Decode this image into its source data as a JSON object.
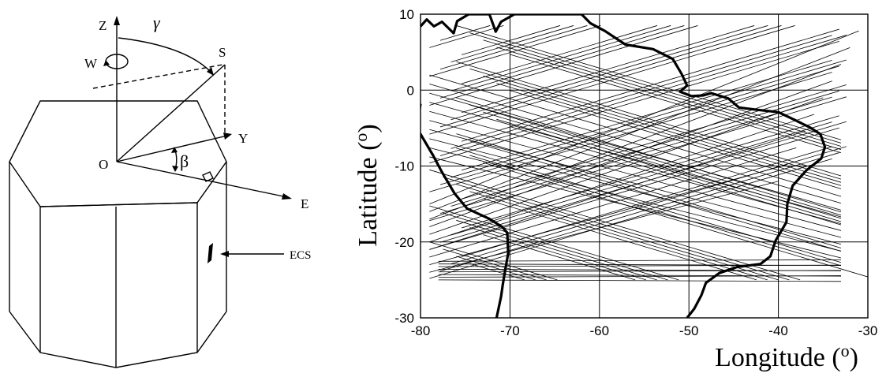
{
  "left_diagram": {
    "labels": {
      "z": "Z",
      "gamma": "γ",
      "s": "S",
      "w": "W",
      "o": "O",
      "y": "Y",
      "beta": "β",
      "e": "E",
      "ecs": "ECS"
    }
  },
  "chart_data": {
    "type": "line",
    "title": "",
    "xlabel": "Longitude (",
    "ylabel": "Latitude (",
    "unit_superscript": "o",
    "xlim": [
      -80,
      -30
    ],
    "ylim": [
      -30,
      10
    ],
    "xticks": [
      -80,
      -70,
      -60,
      -50,
      -40,
      -30
    ],
    "yticks": [
      -30,
      -20,
      -10,
      0,
      10
    ],
    "xtick_labels": [
      "-80",
      "-70",
      "-60",
      "-50",
      "-40",
      "-30"
    ],
    "ytick_labels": [
      "-30",
      "-20",
      "-10",
      "0",
      "10"
    ],
    "grid": true,
    "coastline": [
      [
        -80,
        8.4
      ],
      [
        -79.3,
        9.3
      ],
      [
        -78.5,
        8.4
      ],
      [
        -77.6,
        9.0
      ],
      [
        -76.3,
        7.5
      ],
      [
        -75.9,
        9.1
      ],
      [
        -74.6,
        10.0
      ],
      [
        -72.3,
        10.0
      ],
      [
        -71.6,
        7.7
      ],
      [
        -71.0,
        9.0
      ],
      [
        -69.5,
        10.0
      ],
      [
        -64.0,
        10.0
      ],
      [
        -62.0,
        10.0
      ],
      [
        -61.0,
        8.8
      ],
      [
        -59.4,
        7.8
      ],
      [
        -57.1,
        6.0
      ],
      [
        -54.0,
        5.4
      ],
      [
        -51.8,
        4.1
      ],
      [
        -50.8,
        2.1
      ],
      [
        -50.2,
        0.6
      ],
      [
        -51.0,
        -0.2
      ],
      [
        -49.7,
        -0.8
      ],
      [
        -48.4,
        -0.7
      ],
      [
        -47.5,
        -0.4
      ],
      [
        -45.6,
        -1.1
      ],
      [
        -44.4,
        -2.3
      ],
      [
        -42.3,
        -2.6
      ],
      [
        -40.0,
        -2.9
      ],
      [
        -38.4,
        -3.8
      ],
      [
        -36.5,
        -4.9
      ],
      [
        -35.3,
        -5.8
      ],
      [
        -34.8,
        -7.5
      ],
      [
        -35.2,
        -9.0
      ],
      [
        -36.9,
        -10.6
      ],
      [
        -38.4,
        -12.6
      ],
      [
        -39.0,
        -15.0
      ],
      [
        -39.1,
        -17.4
      ],
      [
        -40.3,
        -19.8
      ],
      [
        -40.9,
        -21.9
      ],
      [
        -42.0,
        -22.9
      ],
      [
        -44.6,
        -23.3
      ],
      [
        -46.6,
        -24.1
      ],
      [
        -48.1,
        -25.4
      ],
      [
        -48.6,
        -27.0
      ],
      [
        -49.4,
        -28.8
      ],
      [
        -50.2,
        -30.0
      ]
    ],
    "coastline_west": [
      [
        -80,
        -1.8
      ],
      [
        -80.4,
        -5.0
      ],
      [
        -78.6,
        -8.6
      ],
      [
        -77.6,
        -10.8
      ],
      [
        -76.2,
        -13.6
      ],
      [
        -74.8,
        -15.6
      ],
      [
        -72.4,
        -16.9
      ],
      [
        -70.9,
        -18.0
      ],
      [
        -70.3,
        -18.8
      ],
      [
        -70.2,
        -21.5
      ],
      [
        -70.5,
        -23.5
      ],
      [
        -70.8,
        -25.6
      ],
      [
        -71.0,
        -27.2
      ],
      [
        -71.5,
        -30.0
      ]
    ],
    "tracks_note": "dense set of satellite ground tracks between about 8 N and 25 S"
  }
}
